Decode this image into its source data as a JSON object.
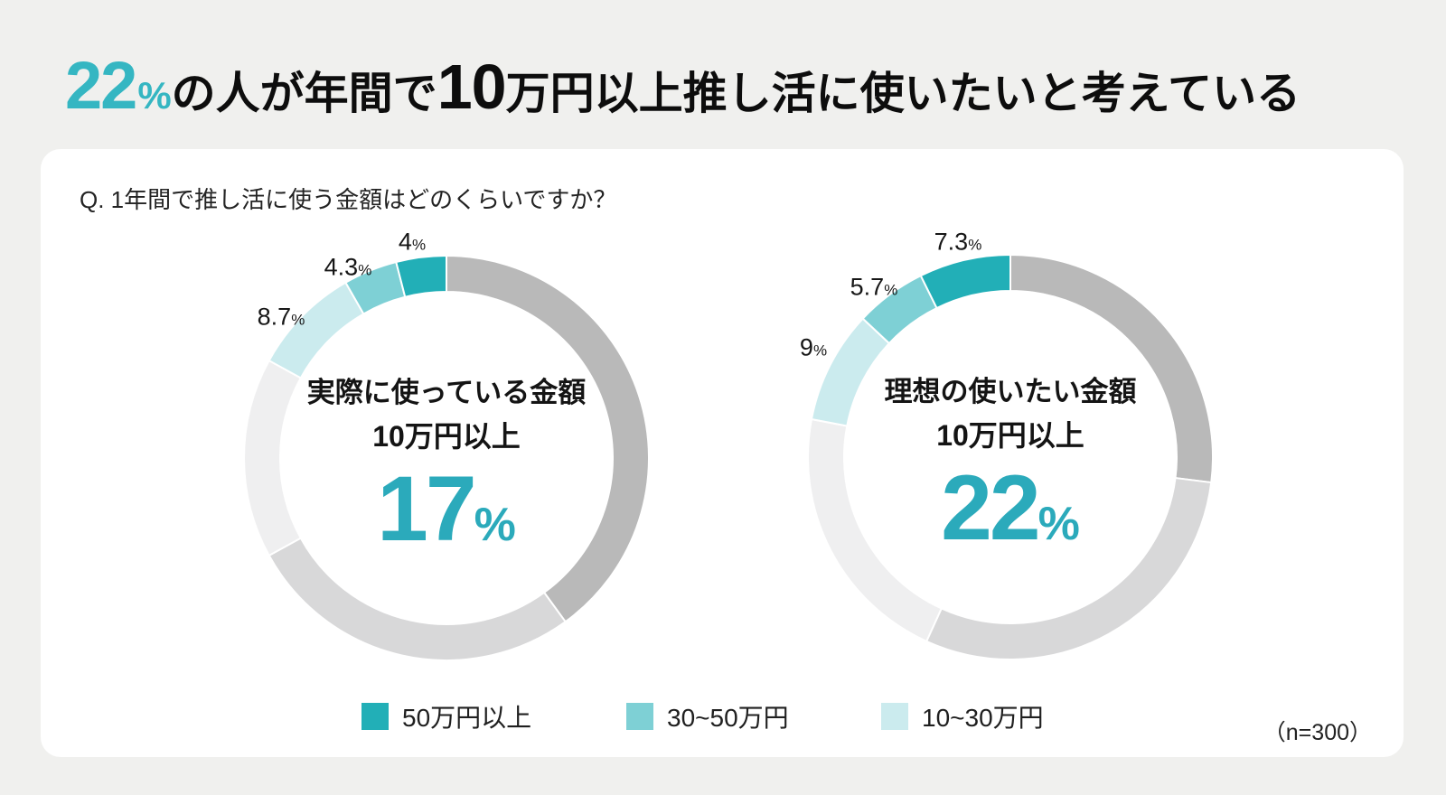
{
  "colors": {
    "page_bg": "#f0f0ee",
    "card_bg": "#ffffff",
    "headline_accent": "#35b6c2",
    "center_number_teal": "#2baabb",
    "teal_dark": "#22afb7",
    "teal_mid": "#7ed0d5",
    "teal_light": "#cbebee",
    "gray_dark": "#b9b9b9",
    "gray_mid": "#d8d8d9",
    "gray_light": "#efeff0"
  },
  "headline": {
    "value": "22",
    "value_unit": "%",
    "text_after_value": "の人が年間で",
    "emphasis": "10",
    "text_tail": "万円以上推し活に使いたいと考えている"
  },
  "question": "Q. 1年間で推し活に使う金額はどのくらいですか？",
  "sample_size": "（n=300）",
  "units": {
    "percent": "%"
  },
  "legend": {
    "items": [
      {
        "label": "50万円以上",
        "color": "#22afb7"
      },
      {
        "label": "30~50万円",
        "color": "#7ed0d5"
      },
      {
        "label": "10~30万円",
        "color": "#cbebee"
      }
    ]
  },
  "chart_data": [
    {
      "type": "donut",
      "center_title": "実際に使っている金額",
      "center_subtitle": "10万円以上",
      "center_value": "17",
      "center_unit": "%",
      "start_angle_deg": 0,
      "clockwise": true,
      "segments": [
        {
          "label": "",
          "value": 40.0,
          "color": "#b9b9b9",
          "data_label": ""
        },
        {
          "label": "",
          "value": 27.0,
          "color": "#d8d8d9",
          "data_label": ""
        },
        {
          "label": "",
          "value": 16.0,
          "color": "#efeff0",
          "data_label": ""
        },
        {
          "label": "10~30万円",
          "value": 8.7,
          "color": "#cbebee",
          "data_label": "8.7"
        },
        {
          "label": "30~50万円",
          "value": 4.3,
          "color": "#7ed0d5",
          "data_label": "4.3"
        },
        {
          "label": "50万円以上",
          "value": 4.0,
          "color": "#22afb7",
          "data_label": "4"
        }
      ]
    },
    {
      "type": "donut",
      "center_title": "理想の使いたい金額",
      "center_subtitle": "10万円以上",
      "center_value": "22",
      "center_unit": "%",
      "start_angle_deg": 0,
      "clockwise": true,
      "segments": [
        {
          "label": "",
          "value": 27.0,
          "color": "#b9b9b9",
          "data_label": ""
        },
        {
          "label": "",
          "value": 29.8,
          "color": "#d8d8d9",
          "data_label": ""
        },
        {
          "label": "",
          "value": 21.2,
          "color": "#efeff0",
          "data_label": ""
        },
        {
          "label": "10~30万円",
          "value": 9.0,
          "color": "#cbebee",
          "data_label": "9"
        },
        {
          "label": "30~50万円",
          "value": 5.7,
          "color": "#7ed0d5",
          "data_label": "5.7"
        },
        {
          "label": "50万円以上",
          "value": 7.3,
          "color": "#22afb7",
          "data_label": "7.3"
        }
      ]
    }
  ]
}
